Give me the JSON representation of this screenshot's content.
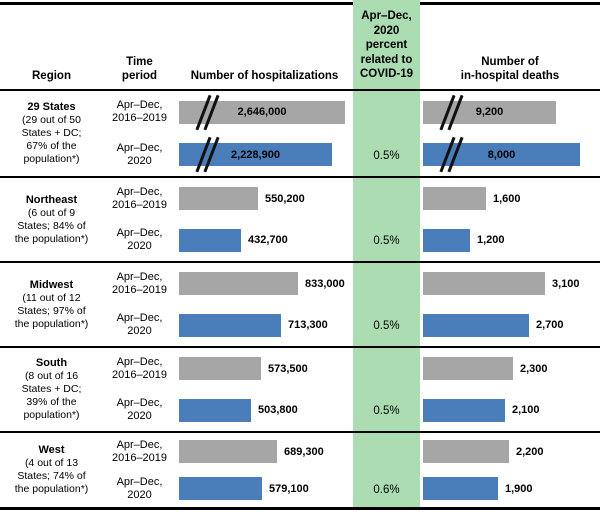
{
  "figure": {
    "headers": {
      "region": "Region",
      "time_period": "Time\nperiod",
      "hospitalizations": "Number of hospitalizations",
      "covid": "Apr–Dec,\n2020\npercent\nrelated to\nCOVID-19",
      "deaths": "Number of\nin-hospital deaths"
    },
    "colors": {
      "baseline_bar": "#A6A6A6",
      "current_bar": "#4A7EBB",
      "covid_column": "#ABDCB2"
    },
    "groups": [
      {
        "name": "29 States",
        "detail": "(29 out of 50 States + DC; 67% of the population*)",
        "rows": [
          {
            "period": "Apr–Dec,\n2016–2019",
            "hosp_label": "2,646,000",
            "hosp_value": 2646000,
            "deaths_label": "9,200",
            "deaths_value": 9200,
            "pct": ""
          },
          {
            "period": "Apr–Dec,\n2020",
            "hosp_label": "2,228,900",
            "hosp_value": 2228900,
            "deaths_label": "8,000",
            "deaths_value": 8000,
            "pct": "0.5%"
          }
        ]
      },
      {
        "name": "Northeast",
        "detail": "(6 out of 9 States; 84% of the population*)",
        "rows": [
          {
            "period": "Apr–Dec,\n2016–2019",
            "hosp_label": "550,200",
            "hosp_value": 550200,
            "deaths_label": "1,600",
            "deaths_value": 1600,
            "pct": ""
          },
          {
            "period": "Apr–Dec,\n2020",
            "hosp_label": "432,700",
            "hosp_value": 432700,
            "deaths_label": "1,200",
            "deaths_value": 1200,
            "pct": "0.5%"
          }
        ]
      },
      {
        "name": "Midwest",
        "detail": "(11 out of 12 States; 97% of the population*)",
        "rows": [
          {
            "period": "Apr–Dec,\n2016–2019",
            "hosp_label": "833,000",
            "hosp_value": 833000,
            "deaths_label": "3,100",
            "deaths_value": 3100,
            "pct": ""
          },
          {
            "period": "Apr–Dec,\n2020",
            "hosp_label": "713,300",
            "hosp_value": 713300,
            "deaths_label": "2,700",
            "deaths_value": 2700,
            "pct": "0.5%"
          }
        ]
      },
      {
        "name": "South",
        "detail": "(8 out of 16 States + DC; 39% of the population*)",
        "rows": [
          {
            "period": "Apr–Dec,\n2016–2019",
            "hosp_label": "573,500",
            "hosp_value": 573500,
            "deaths_label": "2,300",
            "deaths_value": 2300,
            "pct": ""
          },
          {
            "period": "Apr–Dec,\n2020",
            "hosp_label": "503,800",
            "hosp_value": 503800,
            "deaths_label": "2,100",
            "deaths_value": 2100,
            "pct": "0.5%"
          }
        ]
      },
      {
        "name": "West",
        "detail": "(4 out of 13 States; 74% of the population*)",
        "rows": [
          {
            "period": "Apr–Dec,\n2016–2019",
            "hosp_label": "689,300",
            "hosp_value": 689300,
            "deaths_label": "2,200",
            "deaths_value": 2200,
            "pct": ""
          },
          {
            "period": "Apr–Dec,\n2020",
            "hosp_label": "579,100",
            "hosp_value": 579100,
            "deaths_label": "1,900",
            "deaths_value": 1900,
            "pct": "0.6%"
          }
        ]
      }
    ]
  },
  "chart_data": {
    "type": "bar",
    "orientation": "horizontal",
    "categories": [
      "29 States (29 out of 50 States + DC; 67% of the population*)",
      "Northeast (6 out of 9 States; 84% of the population*)",
      "Midwest (11 out of 12 States; 97% of the population*)",
      "South (8 out of 16 States + DC; 39% of the population*)",
      "West (4 out of 13 States; 74% of the population*)"
    ],
    "measures": [
      {
        "name": "Number of hospitalizations",
        "series": [
          {
            "name": "Apr–Dec, 2016–2019",
            "values": [
              2646000,
              550200,
              833000,
              573500,
              689300
            ]
          },
          {
            "name": "Apr–Dec, 2020",
            "values": [
              2228900,
              432700,
              713300,
              503800,
              579100
            ]
          }
        ]
      },
      {
        "name": "Number of in-hospital deaths",
        "series": [
          {
            "name": "Apr–Dec, 2016–2019",
            "values": [
              9200,
              1600,
              3100,
              2300,
              2200
            ]
          },
          {
            "name": "Apr–Dec, 2020",
            "values": [
              8000,
              1200,
              2700,
              2100,
              1900
            ]
          }
        ]
      }
    ],
    "covid_percent_column": {
      "label": "Apr–Dec, 2020 percent related to COVID-19",
      "values": [
        "0.5%",
        "0.5%",
        "0.5%",
        "0.5%",
        "0.6%"
      ]
    },
    "annotations": "29 States bars drawn with axis-break (//) marks, not to scale with regional bars"
  }
}
